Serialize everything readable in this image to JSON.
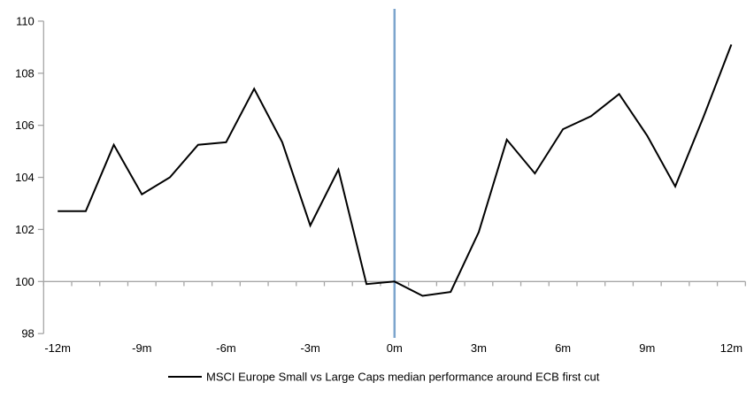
{
  "chart_data": {
    "type": "line",
    "title": "",
    "legend": "MSCI Europe Small vs Large Caps median performance around ECB first cut",
    "months": [
      -12,
      -11,
      -10,
      -9,
      -8,
      -7,
      -6,
      -5,
      -4,
      -3,
      -2,
      -1,
      0,
      1,
      2,
      3,
      4,
      5,
      6,
      7,
      8,
      9,
      10,
      11,
      12
    ],
    "values": [
      102.7,
      102.7,
      105.25,
      103.35,
      104.0,
      105.25,
      105.35,
      107.4,
      105.35,
      102.15,
      104.3,
      99.9,
      100.0,
      99.45,
      99.6,
      101.9,
      105.45,
      104.15,
      105.85,
      106.35,
      107.2,
      105.6,
      103.65,
      106.3,
      109.1
    ],
    "x_tick_labels": [
      "-12m",
      "-9m",
      "-6m",
      "-3m",
      "0m",
      "3m",
      "6m",
      "9m",
      "12m"
    ],
    "y_ticks": [
      98,
      100,
      102,
      104,
      106,
      108,
      110
    ],
    "ylim": [
      98,
      110
    ],
    "xlabel": "",
    "ylabel": "",
    "baseline_value": 100,
    "event_line_x": 0,
    "grid": "horizontal-line-at-100-only",
    "legend_position": "bottom-center",
    "colors": {
      "line": "#000000",
      "event_line": "#7CA5CD",
      "axis": "#A6A6A6",
      "label": "#000000"
    }
  }
}
